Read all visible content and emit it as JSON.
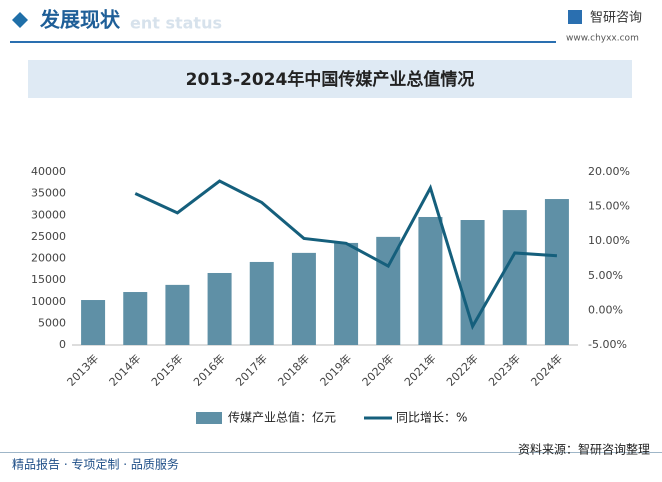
{
  "header": {
    "title": "发展现状",
    "subtitle": "ent status",
    "brand": "智研咨询",
    "url": "www.chyxx.com"
  },
  "chart_data": {
    "type": "bar_line",
    "title": "2013-2024年中国传媒产业总值情况",
    "categories": [
      "2013年",
      "2014年",
      "2015年",
      "2016年",
      "2017年",
      "2018年",
      "2019年",
      "2020年",
      "2021年",
      "2022年",
      "2023年",
      "2024年"
    ],
    "series": [
      {
        "name": "传媒产业总值：亿元",
        "type": "bar",
        "color": "#5f90a6",
        "values": [
          10400,
          12250,
          13900,
          16650,
          19200,
          21300,
          23600,
          25000,
          29600,
          28900,
          31200,
          33750
        ]
      },
      {
        "name": "同比增长：%",
        "type": "line",
        "axis": "y2",
        "color": "#155f7c",
        "values": [
          null,
          16.9,
          14.1,
          18.7,
          15.6,
          10.4,
          9.7,
          6.4,
          17.7,
          -2.3,
          8.3,
          7.9
        ]
      }
    ],
    "ylim": [
      0,
      40000
    ],
    "yticks": [
      0,
      5000,
      10000,
      15000,
      20000,
      25000,
      30000,
      35000,
      40000
    ],
    "y2lim": [
      -5,
      20
    ],
    "y2ticks": [
      {
        "value": -5,
        "label": "-5.00%"
      },
      {
        "value": 0,
        "label": "0.00%"
      },
      {
        "value": 5,
        "label": "5.00%"
      },
      {
        "value": 10,
        "label": "10.00%"
      },
      {
        "value": 15,
        "label": "15.00%"
      },
      {
        "value": 20,
        "label": "20.00%"
      }
    ]
  },
  "footer": {
    "slogan": "精品报告 · 专项定制 · 品质服务",
    "source": "资料来源：智研咨询整理"
  }
}
